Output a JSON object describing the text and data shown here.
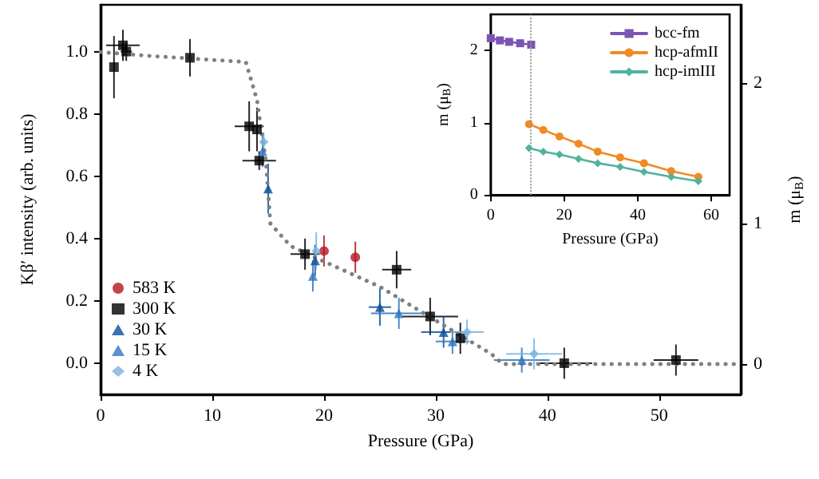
{
  "chart_data": [
    {
      "type": "scatter",
      "xlabel": "Pressure (GPa)",
      "ylabel": "Kβ′ intensity (arb. units)",
      "y2label": "m (μ$_{B}$)",
      "xlim": [
        0,
        57.3
      ],
      "xticks": [
        0,
        10,
        20,
        30,
        40,
        50
      ],
      "ylim": [
        -0.1,
        1.15
      ],
      "yticks": [
        {
          "value": 0,
          "label": "0.0"
        },
        0.2,
        0.4,
        0.6,
        0.8,
        {
          "value": 1,
          "label": "1.0"
        }
      ],
      "y2lim": [
        -0.216,
        2.557
      ],
      "y2ticks": [
        0,
        1,
        2
      ],
      "legend": "bottom left",
      "grid": false,
      "series": [
        {
          "type": "line",
          "axis": "y2",
          "color": "#808080",
          "line_style": "dotted",
          "marker": "none",
          "x": [
            0,
            5,
            13,
            14,
            14.8,
            15.2,
            17,
            20,
            25,
            30,
            35,
            36,
            57.3
          ],
          "values": [
            2.22,
            2.19,
            2.15,
            1.88,
            1.44,
            1.0,
            0.84,
            0.73,
            0.55,
            0.31,
            0.07,
            0,
            0
          ]
        },
        {
          "name": "583 K",
          "color": "#b3161e",
          "marker": "circle",
          "x": [
            20,
            22.8
          ],
          "values": [
            0.36,
            0.34
          ],
          "errors": [
            0.05,
            0.05
          ],
          "xerrors": [
            null,
            null
          ]
        },
        {
          "name": "300 K",
          "color": "#000000",
          "marker": "square",
          "x": [
            1.2,
            2,
            2.3,
            8,
            13.3,
            14,
            14.2,
            18.3,
            26.5,
            29.5,
            32.2,
            41.5,
            51.5
          ],
          "values": [
            0.95,
            1.02,
            1.0,
            0.98,
            0.76,
            0.75,
            0.65,
            0.35,
            0.3,
            0.15,
            0.08,
            0.0,
            0.01
          ],
          "errors": [
            0.1,
            0.05,
            0.03,
            0.06,
            0.08,
            0.07,
            0.03,
            0.05,
            0.06,
            0.06,
            0.05,
            0.05,
            0.05
          ],
          "xerrors": [
            null,
            1.5,
            0.5,
            null,
            1.3,
            null,
            1.5,
            1.3,
            1.3,
            2.5,
            null,
            2.5,
            2
          ]
        },
        {
          "name": "30 K",
          "color": "#0b4f9c",
          "marker": "triangle",
          "x": [
            15,
            19.2,
            25,
            30.7
          ],
          "values": [
            0.56,
            0.33,
            0.18,
            0.1
          ],
          "errors": [
            0.08,
            0.05,
            0.06,
            0.05
          ],
          "xerrors": [
            null,
            null,
            1,
            2
          ]
        },
        {
          "name": "15 K",
          "color": "#2f74c0",
          "marker": "triangle",
          "x": [
            14.5,
            19,
            26.7,
            31.5,
            37.7
          ],
          "values": [
            0.68,
            0.28,
            0.16,
            0.07,
            0.01
          ],
          "errors": [
            0.05,
            0.05,
            0.05,
            0.04,
            0.04
          ],
          "xerrors": [
            null,
            null,
            2.5,
            1.5,
            2.5
          ]
        },
        {
          "name": "4 K",
          "color": "#7ab3e0",
          "marker": "diamond",
          "x": [
            14.6,
            19.3,
            32.8,
            38.8
          ],
          "values": [
            0.71,
            0.36,
            0.1,
            0.03
          ],
          "errors": [
            0.03,
            0.06,
            0.04,
            0.05
          ],
          "xerrors": [
            null,
            null,
            1.5,
            2.5
          ]
        }
      ]
    },
    {
      "type": "line",
      "xlabel": "Pressure (GPa)",
      "ylabel": "m (μ$_{B}$)",
      "xlim": [
        0,
        65
      ],
      "xticks": [
        0,
        20,
        40,
        60
      ],
      "ylim": [
        0,
        2.5
      ],
      "yticks": [
        0,
        1,
        2
      ],
      "legend": "top right",
      "grid": false,
      "ref_lines": [
        {
          "axis": "x",
          "value": 11,
          "color": "#999999",
          "line_style": "dotted"
        }
      ],
      "series": [
        {
          "name": "bcc-fm",
          "color": "#7b55b3",
          "marker": "square",
          "x": [
            0,
            2.5,
            5,
            8,
            11
          ],
          "values": [
            2.17,
            2.14,
            2.12,
            2.1,
            2.08
          ]
        },
        {
          "name": "hcp-afmII",
          "color": "#f08a24",
          "marker": "circle",
          "x": [
            10.4,
            14.3,
            18.7,
            23.9,
            29.1,
            35.2,
            41.7,
            49.1,
            56.5
          ],
          "values": [
            0.98,
            0.9,
            0.81,
            0.71,
            0.6,
            0.52,
            0.44,
            0.33,
            0.25
          ]
        },
        {
          "name": "hcp-imIII",
          "color": "#4fb39e",
          "marker": "diamond",
          "x": [
            10.4,
            14.3,
            18.7,
            23.9,
            29.1,
            35.2,
            41.7,
            49.1,
            56.5
          ],
          "values": [
            0.65,
            0.6,
            0.56,
            0.5,
            0.44,
            0.39,
            0.32,
            0.25,
            0.19
          ]
        }
      ]
    }
  ]
}
